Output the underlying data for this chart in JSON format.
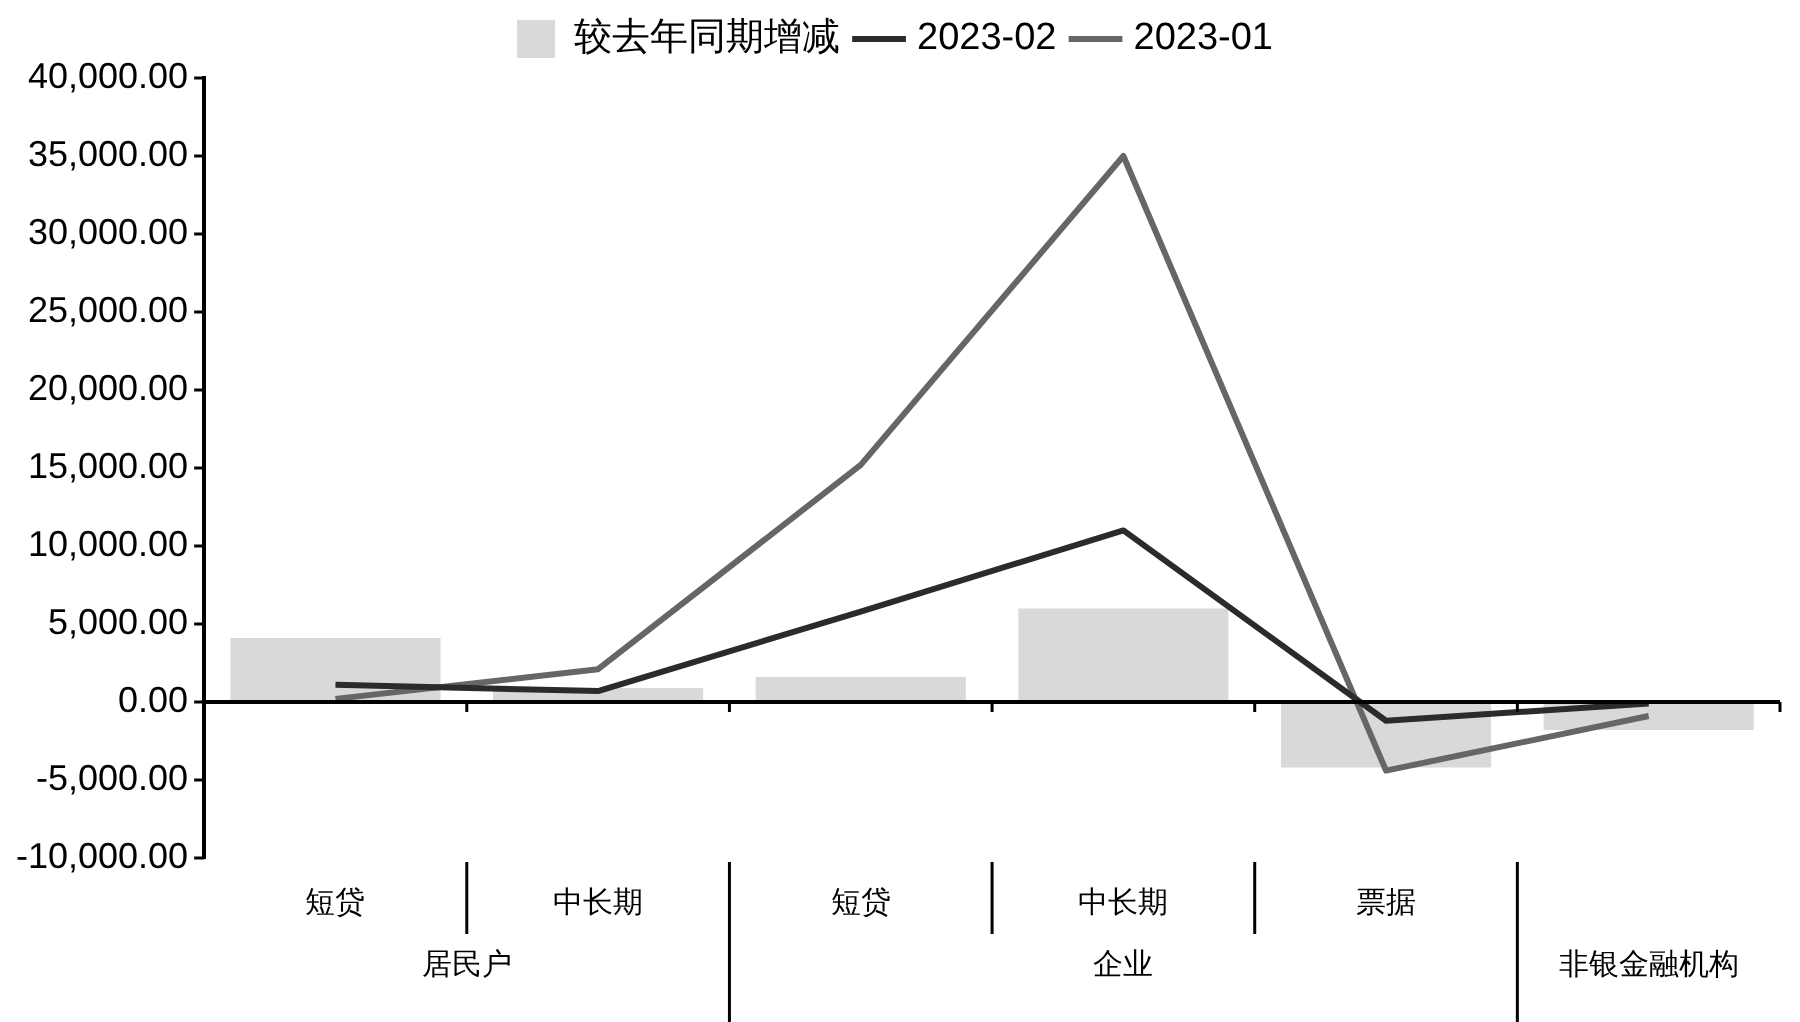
{
  "chart_data": {
    "type": "bar",
    "categories": [
      "短贷",
      "中长期",
      "短贷",
      "中长期",
      "票据",
      null
    ],
    "series": [
      {
        "name": "较去年同期增减",
        "color": "#d9d9d9",
        "values": [
          4100,
          900,
          1600,
          6000,
          -4200,
          -1800
        ]
      },
      {
        "name": "2023-02",
        "type": "line",
        "color": "#2b2b2b",
        "values": [
          1100,
          700,
          5800,
          11000,
          -1200,
          -100
        ]
      },
      {
        "name": "2023-01",
        "type": "line",
        "color": "#666666",
        "values": [
          200,
          2100,
          15200,
          35000,
          -4400,
          -900
        ]
      }
    ],
    "ylim": [
      -10000,
      40000
    ],
    "yticks": [
      {
        "value": -10000,
        "label": "-10,000.00"
      },
      {
        "value": -5000,
        "label": "-5,000.00"
      },
      {
        "value": 0,
        "label": "0.00"
      },
      {
        "value": 5000,
        "label": "5,000.00"
      },
      {
        "value": 10000,
        "label": "10,000.00"
      },
      {
        "value": 15000,
        "label": "15,000.00"
      },
      {
        "value": 20000,
        "label": "20,000.00"
      },
      {
        "value": 25000,
        "label": "25,000.00"
      },
      {
        "value": 30000,
        "label": "30,000.00"
      },
      {
        "value": 35000,
        "label": "35,000.00"
      },
      {
        "value": 40000,
        "label": "40,000.00"
      }
    ],
    "annotations": [
      "居民户",
      "企业",
      "非银金融机构"
    ],
    "legend": "top",
    "marker": "none",
    "line_style": "solid"
  }
}
